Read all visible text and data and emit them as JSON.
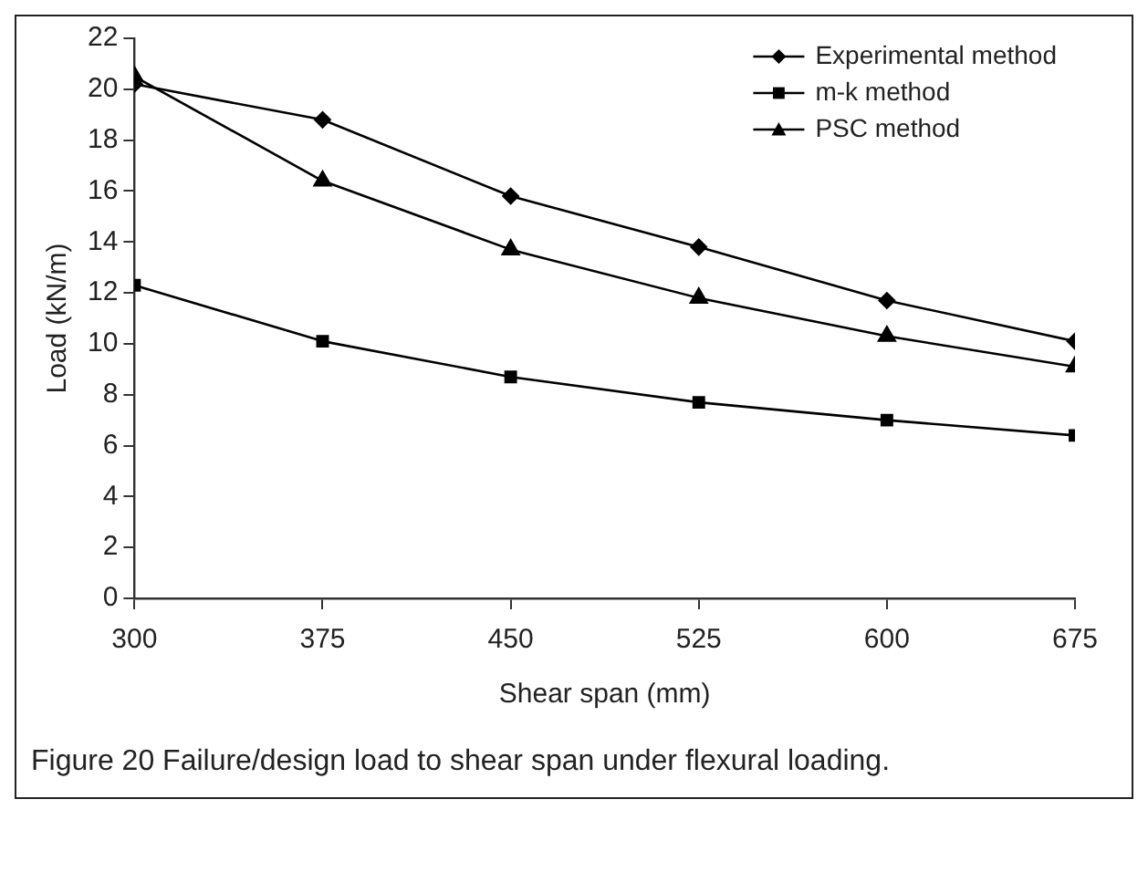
{
  "chart_data": {
    "type": "line",
    "xlabel": "Shear span (mm)",
    "ylabel": "Load (kN/m)",
    "x": [
      300,
      375,
      450,
      525,
      600,
      675
    ],
    "xlim": [
      300,
      675
    ],
    "xticks": [
      300,
      375,
      450,
      525,
      600,
      675
    ],
    "ylim": [
      0,
      22
    ],
    "yticks": [
      0,
      2,
      4,
      6,
      8,
      10,
      12,
      14,
      16,
      18,
      20,
      22
    ],
    "grid": false,
    "legend": "top right",
    "line_style": "solid",
    "series": [
      {
        "name": "Experimental method",
        "color": "#000000",
        "marker": "diamond",
        "values": [
          20.2,
          18.8,
          15.8,
          13.8,
          11.7,
          10.1
        ]
      },
      {
        "name": "m-k method",
        "color": "#000000",
        "marker": "square",
        "values": [
          12.3,
          10.1,
          8.7,
          7.7,
          7.0,
          6.4
        ]
      },
      {
        "name": "PSC method",
        "color": "#000000",
        "marker": "triangle",
        "values": [
          20.5,
          16.4,
          13.7,
          11.8,
          10.3,
          9.1
        ]
      }
    ],
    "annotations": [
      "Figure 20 Failure/design load to shear span under flexural loading."
    ]
  }
}
